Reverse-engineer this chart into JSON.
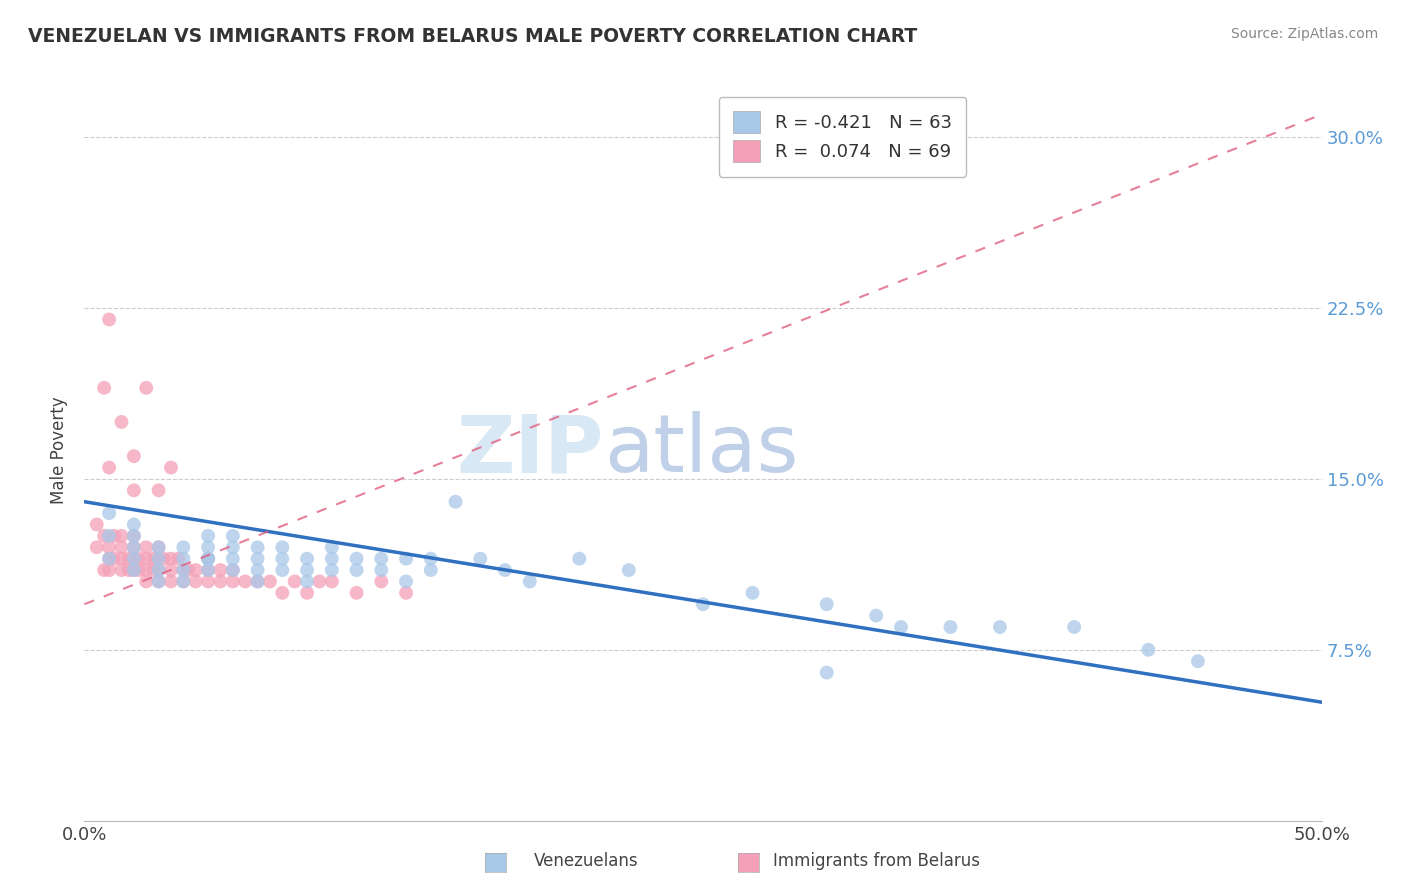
{
  "title": "VENEZUELAN VS IMMIGRANTS FROM BELARUS MALE POVERTY CORRELATION CHART",
  "source": "Source: ZipAtlas.com",
  "ylabel": "Male Poverty",
  "xmin": 0.0,
  "xmax": 0.5,
  "ymin": 0.0,
  "ymax": 0.325,
  "ytick_positions": [
    0.0,
    0.075,
    0.15,
    0.225,
    0.3
  ],
  "ytick_labels": [
    "",
    "7.5%",
    "15.0%",
    "22.5%",
    "30.0%"
  ],
  "xtick_positions": [
    0.0,
    0.1,
    0.2,
    0.3,
    0.4,
    0.5
  ],
  "xtick_labels": [
    "0.0%",
    "",
    "",
    "",
    "",
    "50.0%"
  ],
  "legend_line1": "R = -0.421   N = 63",
  "legend_line2": "R =  0.074   N = 69",
  "color_blue": "#A8C8E8",
  "color_pink": "#F4A0B8",
  "color_blue_line": "#3070C0",
  "color_pink_line": "#E06080",
  "watermark_zip": "ZIP",
  "watermark_atlas": "atlas",
  "background_color": "#FFFFFF",
  "venezuelan_x": [
    0.01,
    0.01,
    0.01,
    0.02,
    0.02,
    0.02,
    0.02,
    0.02,
    0.03,
    0.03,
    0.03,
    0.03,
    0.04,
    0.04,
    0.04,
    0.04,
    0.05,
    0.05,
    0.05,
    0.05,
    0.05,
    0.06,
    0.06,
    0.06,
    0.06,
    0.07,
    0.07,
    0.07,
    0.07,
    0.08,
    0.08,
    0.08,
    0.09,
    0.09,
    0.09,
    0.1,
    0.1,
    0.1,
    0.11,
    0.11,
    0.12,
    0.12,
    0.13,
    0.13,
    0.14,
    0.14,
    0.15,
    0.16,
    0.17,
    0.18,
    0.2,
    0.22,
    0.25,
    0.27,
    0.3,
    0.32,
    0.33,
    0.35,
    0.37,
    0.4,
    0.43,
    0.45,
    0.3
  ],
  "venezuelan_y": [
    0.115,
    0.125,
    0.135,
    0.11,
    0.12,
    0.13,
    0.115,
    0.125,
    0.11,
    0.12,
    0.115,
    0.105,
    0.11,
    0.12,
    0.115,
    0.105,
    0.115,
    0.125,
    0.11,
    0.12,
    0.115,
    0.115,
    0.125,
    0.11,
    0.12,
    0.115,
    0.12,
    0.11,
    0.105,
    0.115,
    0.12,
    0.11,
    0.115,
    0.11,
    0.105,
    0.12,
    0.115,
    0.11,
    0.115,
    0.11,
    0.115,
    0.11,
    0.115,
    0.105,
    0.11,
    0.115,
    0.14,
    0.115,
    0.11,
    0.105,
    0.115,
    0.11,
    0.095,
    0.1,
    0.095,
    0.09,
    0.085,
    0.085,
    0.085,
    0.085,
    0.075,
    0.07,
    0.065
  ],
  "belarus_x": [
    0.005,
    0.005,
    0.008,
    0.008,
    0.01,
    0.01,
    0.01,
    0.012,
    0.012,
    0.015,
    0.015,
    0.015,
    0.015,
    0.018,
    0.018,
    0.02,
    0.02,
    0.02,
    0.02,
    0.02,
    0.022,
    0.022,
    0.025,
    0.025,
    0.025,
    0.025,
    0.028,
    0.028,
    0.03,
    0.03,
    0.03,
    0.03,
    0.032,
    0.035,
    0.035,
    0.035,
    0.038,
    0.04,
    0.04,
    0.042,
    0.045,
    0.045,
    0.05,
    0.05,
    0.05,
    0.055,
    0.055,
    0.06,
    0.06,
    0.065,
    0.07,
    0.075,
    0.08,
    0.085,
    0.09,
    0.095,
    0.1,
    0.11,
    0.12,
    0.13,
    0.01,
    0.008,
    0.01,
    0.015,
    0.02,
    0.025,
    0.03,
    0.035,
    0.02
  ],
  "belarus_y": [
    0.12,
    0.13,
    0.11,
    0.125,
    0.115,
    0.12,
    0.11,
    0.115,
    0.125,
    0.115,
    0.12,
    0.11,
    0.125,
    0.115,
    0.11,
    0.115,
    0.12,
    0.11,
    0.115,
    0.125,
    0.115,
    0.11,
    0.115,
    0.12,
    0.11,
    0.105,
    0.115,
    0.11,
    0.115,
    0.11,
    0.12,
    0.105,
    0.115,
    0.115,
    0.11,
    0.105,
    0.115,
    0.11,
    0.105,
    0.11,
    0.11,
    0.105,
    0.11,
    0.115,
    0.105,
    0.11,
    0.105,
    0.11,
    0.105,
    0.105,
    0.105,
    0.105,
    0.1,
    0.105,
    0.1,
    0.105,
    0.105,
    0.1,
    0.105,
    0.1,
    0.155,
    0.19,
    0.22,
    0.175,
    0.16,
    0.19,
    0.145,
    0.155,
    0.145
  ],
  "blue_line_x0": 0.0,
  "blue_line_x1": 0.5,
  "blue_line_y0": 0.14,
  "blue_line_y1": 0.052,
  "pink_line_x0": 0.0,
  "pink_line_x1": 0.5,
  "pink_line_y0": 0.095,
  "pink_line_y1": 0.31
}
